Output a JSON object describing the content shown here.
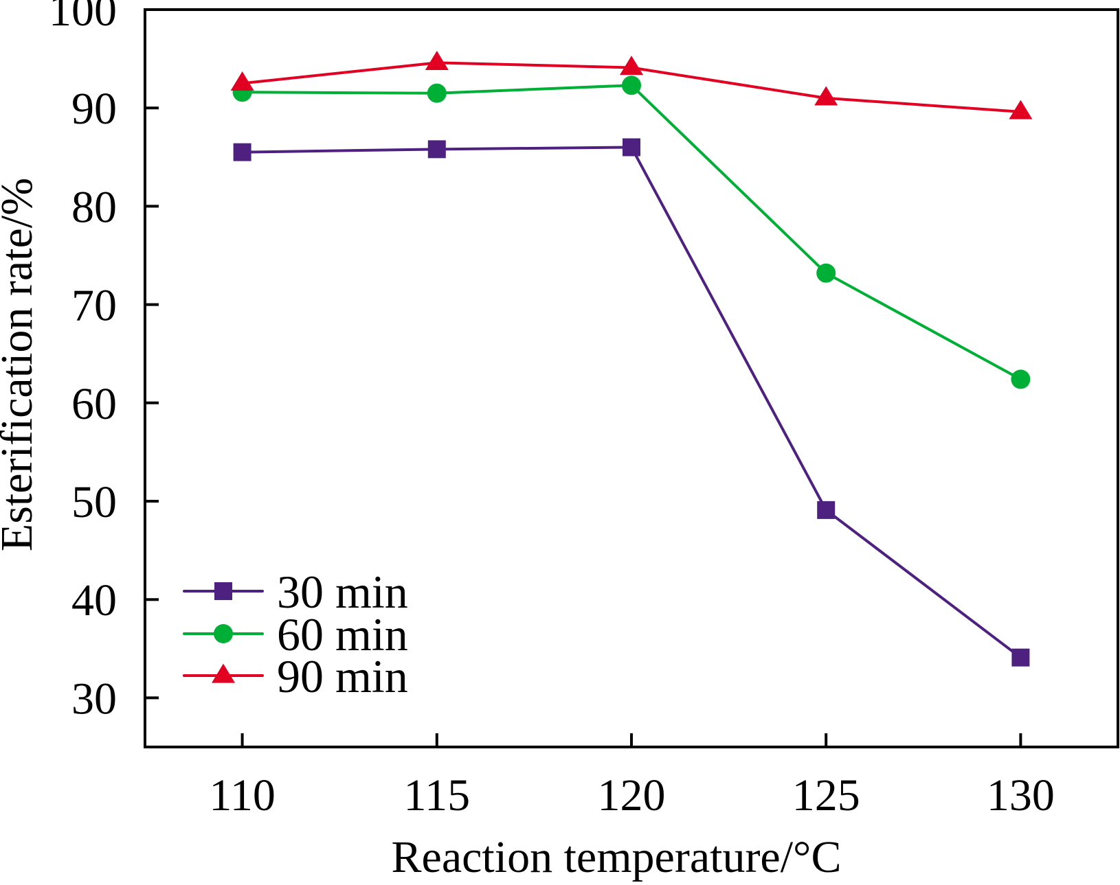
{
  "chart_data": {
    "type": "line",
    "title": "",
    "xlabel": "Reaction temperature/°C",
    "ylabel": "Esterification rate/%",
    "x": [
      110,
      115,
      120,
      125,
      130
    ],
    "xlim": [
      107.5,
      132.5
    ],
    "ylim": [
      25,
      100
    ],
    "xticks": [
      "110",
      "115",
      "120",
      "125",
      "130"
    ],
    "yticks": [
      "30",
      "40",
      "50",
      "60",
      "70",
      "80",
      "90",
      "100"
    ],
    "grid": false,
    "legend_position": "bottom-left",
    "series": [
      {
        "name": "30 min",
        "marker": "square",
        "color": "#4E2181",
        "values": [
          85.5,
          85.8,
          86.0,
          49.1,
          34.1
        ]
      },
      {
        "name": "60 min",
        "marker": "circle",
        "color": "#00AF36",
        "values": [
          91.6,
          91.5,
          92.3,
          73.2,
          62.4
        ]
      },
      {
        "name": "90 min",
        "marker": "triangle",
        "color": "#E10022",
        "values": [
          92.5,
          94.6,
          94.1,
          91.0,
          89.6
        ]
      }
    ]
  }
}
